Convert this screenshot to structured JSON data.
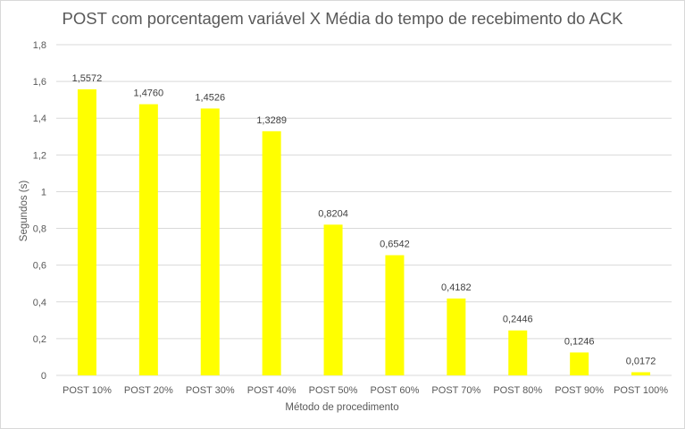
{
  "chart_data": {
    "type": "bar",
    "title": "POST com porcentagem variável X Média do tempo de recebimento do ACK",
    "xlabel": "Método de procedimento",
    "ylabel": "Segundos (s)",
    "categories": [
      "POST 10%",
      "POST 20%",
      "POST 30%",
      "POST 40%",
      "POST 50%",
      "POST 60%",
      "POST 70%",
      "POST 80%",
      "POST 90%",
      "POST 100%"
    ],
    "values": [
      1.5572,
      1.476,
      1.4526,
      1.3289,
      0.8204,
      0.6542,
      0.4182,
      0.2446,
      0.1246,
      0.0172
    ],
    "data_labels": [
      "1,5572",
      "1,4760",
      "1,4526",
      "1,3289",
      "0,8204",
      "0,6542",
      "0,4182",
      "0,2446",
      "0,1246",
      "0,0172"
    ],
    "ylim": [
      0,
      1.8
    ],
    "yticks": [
      0,
      0.2,
      0.4,
      0.6,
      0.8,
      1,
      1.2,
      1.4,
      1.6,
      1.8
    ],
    "ytick_labels": [
      "0",
      "0,2",
      "0,4",
      "0,6",
      "0,8",
      "1",
      "1,2",
      "1,4",
      "1,6",
      "1,8"
    ],
    "grid": true,
    "legend": "none",
    "bar_color": "#ffff00",
    "grid_color": "#d9d9d9"
  }
}
